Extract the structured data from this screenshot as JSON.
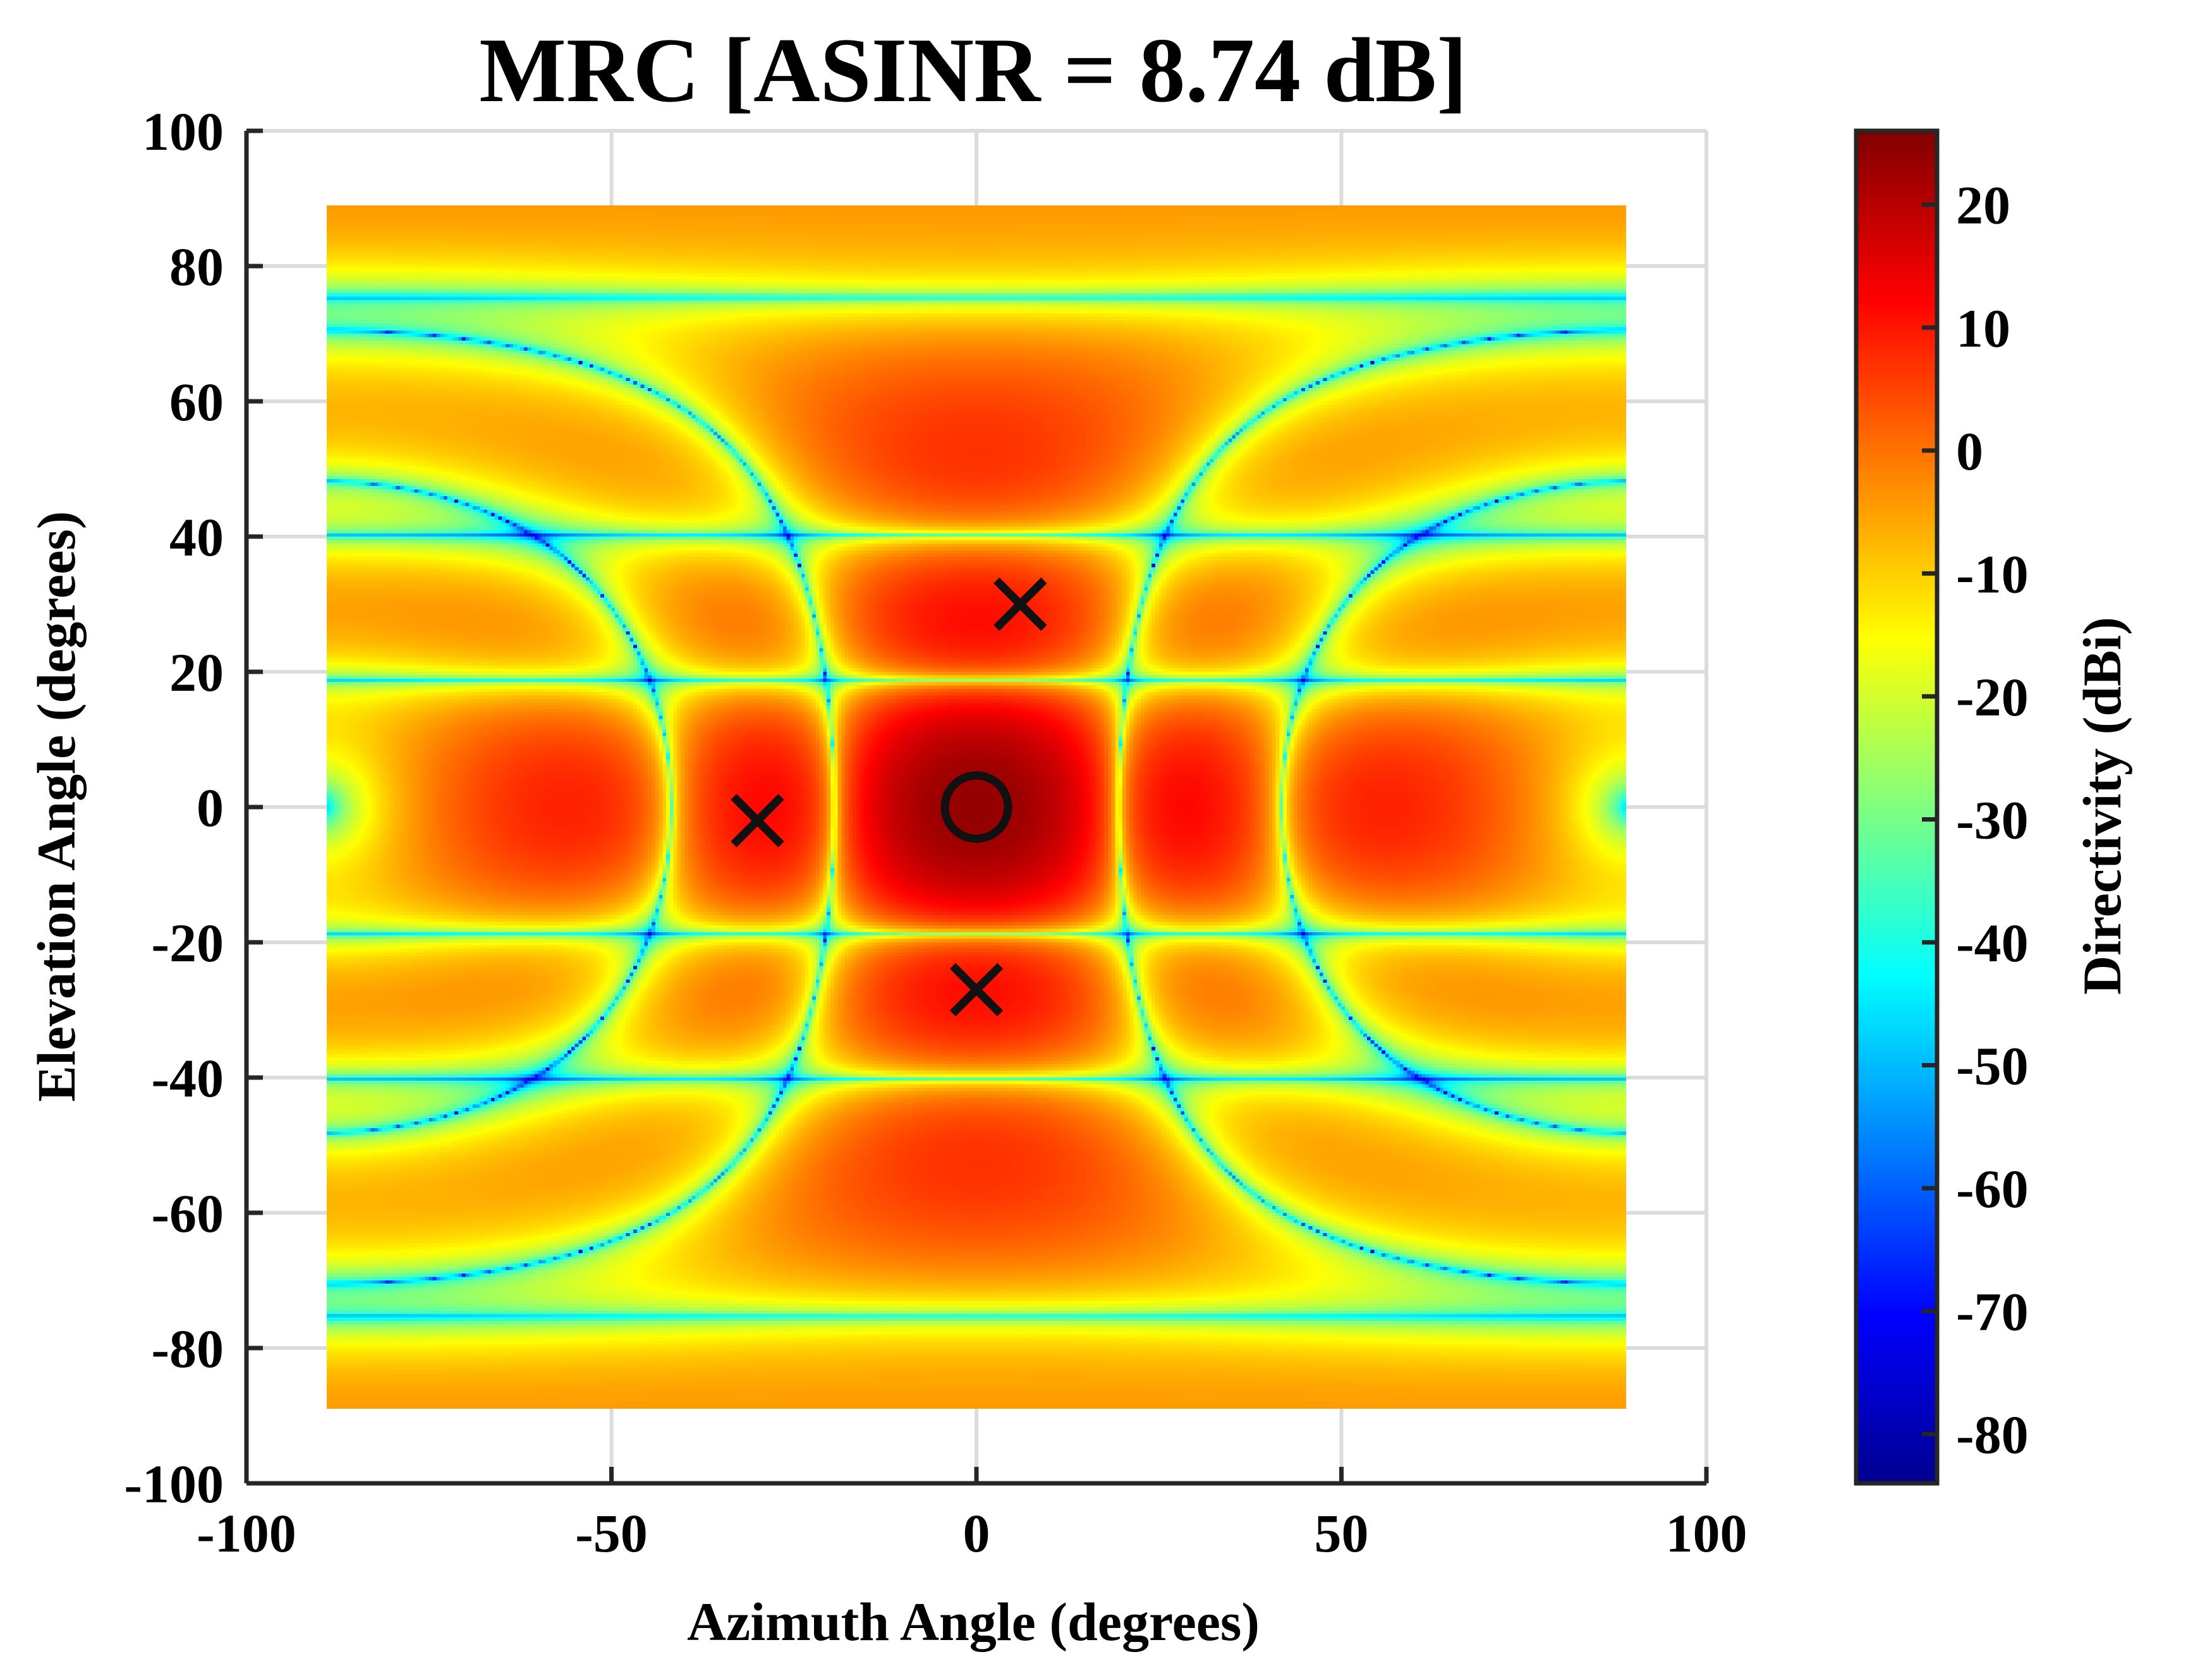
{
  "chart_data": {
    "type": "heatmap",
    "title": "MRC [ASINR = 8.74 dB]",
    "xlabel": "Azimuth Angle (degrees)",
    "ylabel": "Elevation Angle (degrees)",
    "xlim": [
      -100,
      100
    ],
    "ylim": [
      -100,
      100
    ],
    "x_ticks": [
      "-100",
      "-50",
      "0",
      "50",
      "100"
    ],
    "y_ticks": [
      "100",
      "80",
      "60",
      "40",
      "20",
      "0",
      "-20",
      "-40",
      "-60",
      "-80",
      "-100"
    ],
    "grid": true,
    "data_extent": {
      "azimuth": [
        -89,
        89
      ],
      "elevation": [
        -89,
        89
      ]
    },
    "colormap": "jet",
    "colorbar": {
      "label": "Directivity (dBi)",
      "range": [
        -84,
        26
      ],
      "ticks": [
        "20",
        "10",
        "0",
        "-10",
        "-20",
        "-30",
        "-40",
        "-50",
        "-60",
        "-70",
        "-80"
      ]
    },
    "markers": [
      {
        "type": "desired",
        "symbol": "circle",
        "azimuth": 0,
        "elevation": 0
      },
      {
        "type": "interferer",
        "symbol": "x",
        "azimuth": 6,
        "elevation": 30
      },
      {
        "type": "interferer",
        "symbol": "x",
        "azimuth": -30,
        "elevation": -2
      },
      {
        "type": "interferer",
        "symbol": "x",
        "azimuth": 0,
        "elevation": -27
      }
    ],
    "colors": {
      "axis": "#262626",
      "grid": "#dcdcdc",
      "marker": "#111111"
    }
  }
}
